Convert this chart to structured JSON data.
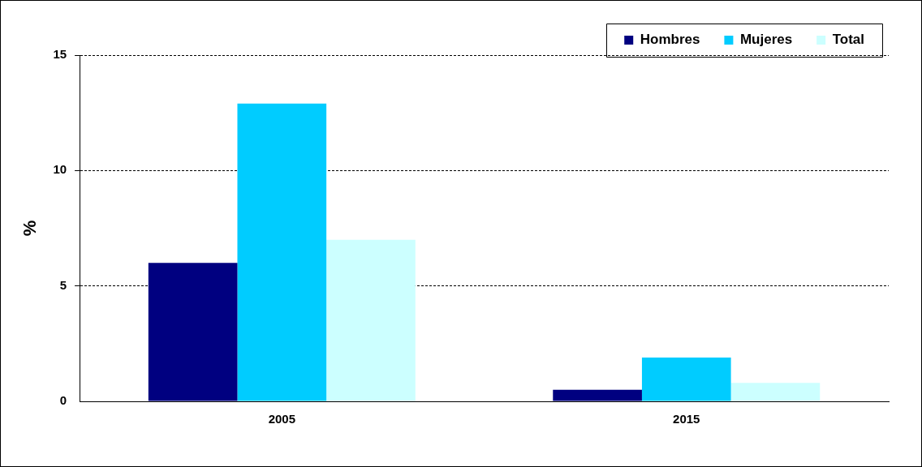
{
  "chart_data": {
    "type": "bar",
    "ylabel": "%",
    "categories": [
      "2005",
      "2015"
    ],
    "series": [
      {
        "name": "Hombres",
        "color": "#000080",
        "values": [
          6.0,
          0.5
        ]
      },
      {
        "name": "Mujeres",
        "color": "#00ccff",
        "values": [
          12.9,
          1.9
        ]
      },
      {
        "name": "Total",
        "color": "#ccffff",
        "values": [
          7.0,
          0.8
        ]
      }
    ],
    "ylim": [
      0,
      15
    ],
    "yticks": [
      0,
      5,
      10,
      15
    ],
    "grid": "y",
    "legend": "top right"
  }
}
